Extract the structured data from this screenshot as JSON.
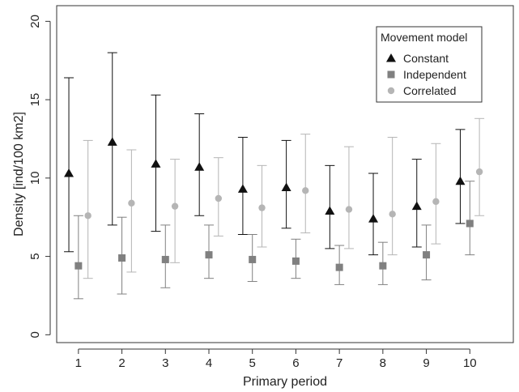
{
  "chart_data": {
    "type": "scatter",
    "xlabel": "Primary period",
    "ylabel": "Density [ind/100 km2]",
    "categories": [
      "1",
      "2",
      "3",
      "4",
      "5",
      "6",
      "7",
      "8",
      "9",
      "10"
    ],
    "xlim": [
      0.5,
      11.0
    ],
    "ylim": [
      -0.5,
      21.0
    ],
    "yticks": [
      "0",
      "5",
      "10",
      "15",
      "20"
    ],
    "legend": {
      "title": "Movement model",
      "position": "top-right"
    },
    "series": [
      {
        "name": "Constant",
        "marker": "triangle",
        "color": "#111111",
        "values": [
          10.3,
          12.3,
          10.9,
          10.7,
          9.3,
          9.4,
          7.9,
          7.4,
          8.2,
          9.8
        ],
        "lower": [
          5.3,
          7.0,
          6.6,
          7.6,
          6.4,
          6.8,
          5.5,
          5.1,
          5.6,
          7.1
        ],
        "upper": [
          16.4,
          18.0,
          15.3,
          14.1,
          12.6,
          12.4,
          10.8,
          10.3,
          11.2,
          13.1
        ]
      },
      {
        "name": "Independent",
        "marker": "square",
        "color": "#808080",
        "values": [
          4.4,
          4.9,
          4.8,
          5.1,
          4.8,
          4.7,
          4.3,
          4.4,
          5.1,
          7.1
        ],
        "lower": [
          2.3,
          2.6,
          3.0,
          3.6,
          3.4,
          3.6,
          3.2,
          3.2,
          3.5,
          5.1
        ],
        "upper": [
          7.6,
          7.5,
          7.0,
          7.0,
          6.4,
          6.1,
          5.7,
          5.9,
          7.0,
          9.8
        ]
      },
      {
        "name": "Correlated",
        "marker": "circle",
        "color": "#b5b5b5",
        "values": [
          7.6,
          8.4,
          8.2,
          8.7,
          8.1,
          9.2,
          8.0,
          7.7,
          8.5,
          10.4
        ],
        "lower": [
          3.6,
          4.0,
          4.6,
          6.3,
          5.6,
          6.5,
          5.5,
          5.1,
          5.8,
          7.6
        ],
        "upper": [
          12.4,
          11.8,
          11.2,
          11.3,
          10.8,
          12.8,
          12.0,
          12.6,
          12.2,
          13.8
        ]
      }
    ]
  }
}
